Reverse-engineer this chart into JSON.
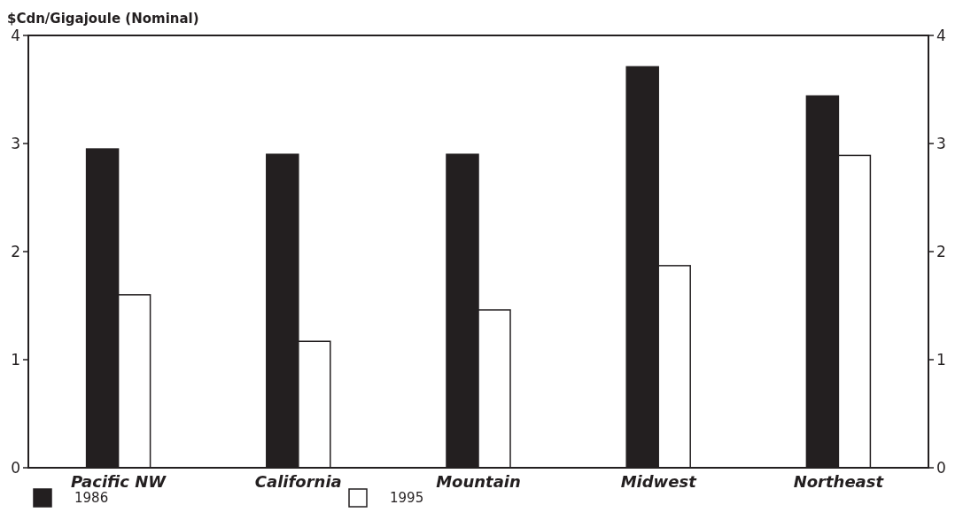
{
  "chart_data": {
    "type": "bar",
    "ylabel": "$Cdn/Gigajoule (Nominal)",
    "categories": [
      "Pacific NW",
      "California",
      "Mountain",
      "Midwest",
      "Northeast"
    ],
    "series": [
      {
        "name": "1986",
        "color": "#231f20",
        "values": [
          2.95,
          2.9,
          2.9,
          3.71,
          3.44
        ]
      },
      {
        "name": "1995",
        "color": "#ffffff",
        "values": [
          1.6,
          1.17,
          1.46,
          1.87,
          2.89
        ]
      }
    ],
    "ylim": [
      0,
      4
    ],
    "yticks": [
      0,
      1,
      2,
      3,
      4
    ],
    "y2lim": [
      0,
      4
    ],
    "y2ticks": [
      0,
      1,
      2,
      3,
      4
    ],
    "grid": false,
    "legend": "bottom"
  }
}
